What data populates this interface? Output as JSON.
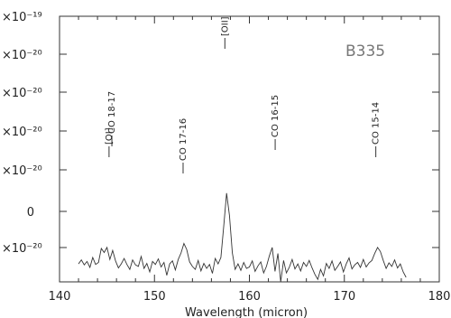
{
  "chart_data": {
    "type": "line",
    "title": "",
    "annotation": "B335",
    "xlabel": "Wavelength (micron)",
    "ylabel": "",
    "xlim": [
      140,
      180
    ],
    "ylim": [
      -3.3e-20,
      5e-19
    ],
    "x_ticks": [
      "140",
      "150",
      "160",
      "170",
      "180"
    ],
    "y_tick_labels": [
      "×10⁻¹⁹",
      "×10⁻²⁰",
      "×10⁻²⁰",
      "×10⁻²⁰",
      "×10⁻²⁰",
      "0",
      "×10⁻²⁰"
    ],
    "line_labels": [
      {
        "text": "CO 18-17",
        "x": 145.8
      },
      {
        "text": "[OI]",
        "x": 145.5
      },
      {
        "text": "CO 17-16",
        "x": 153.3
      },
      {
        "text": "[OII]",
        "x": 157.7
      },
      {
        "text": "CO 16-15",
        "x": 163.0
      },
      {
        "text": "CO 15-14",
        "x": 173.6
      }
    ],
    "series": [
      {
        "x": [
          142.0,
          142.3,
          142.6,
          142.9,
          143.2,
          143.5,
          143.8,
          144.1,
          144.4,
          144.7,
          145.0,
          145.3,
          145.6,
          145.9,
          146.2,
          146.5,
          146.8,
          147.1,
          147.4,
          147.7,
          148.0,
          148.3,
          148.6,
          148.9,
          149.2,
          149.5,
          149.8,
          150.1,
          150.4,
          150.7,
          151.0,
          151.3,
          151.6,
          151.9,
          152.2,
          152.5,
          152.8,
          153.1,
          153.4,
          153.7,
          154.0,
          154.3,
          154.6,
          154.9,
          155.2,
          155.5,
          155.8,
          156.1,
          156.4,
          156.7,
          157.0,
          157.3,
          157.6,
          157.9,
          158.2,
          158.5,
          158.8,
          159.1,
          159.4,
          159.7,
          160.0,
          160.3,
          160.6,
          160.9,
          161.2,
          161.5,
          161.8,
          162.1,
          162.4,
          162.7,
          163.0,
          163.3,
          163.6,
          163.9,
          164.2,
          164.5,
          164.8,
          165.1,
          165.4,
          165.7,
          166.0,
          166.3,
          166.6,
          166.9,
          167.2,
          167.5,
          167.8,
          168.1,
          168.4,
          168.7,
          169.0,
          169.3,
          169.6,
          169.9,
          170.2,
          170.5,
          170.8,
          171.1,
          171.4,
          171.7,
          172.0,
          172.3,
          172.6,
          172.9,
          173.2,
          173.5,
          173.8,
          174.1,
          174.4,
          174.7,
          175.0,
          175.3,
          175.6,
          175.9,
          176.2,
          176.5
        ],
        "y": [
          3e-21,
          1.1e-20,
          1e-21,
          8e-21,
          -4e-21,
          1.6e-20,
          2e-21,
          6e-21,
          3.4e-20,
          2.6e-20,
          3.6e-20,
          1.2e-20,
          3e-20,
          9e-21,
          -5e-21,
          3e-21,
          1.4e-20,
          2e-21,
          -8e-21,
          1.1e-20,
          1e-21,
          -2e-21,
          1.8e-20,
          -6e-21,
          4e-21,
          -1.3e-20,
          8e-21,
          2e-21,
          1.3e-20,
          -3e-21,
          6e-21,
          -2e-20,
          3e-21,
          9e-21,
          -9e-21,
          1.2e-20,
          2.5e-20,
          4.4e-20,
          3.2e-20,
          7e-21,
          -2e-21,
          -8e-21,
          1e-20,
          -1.1e-20,
          4e-21,
          -6e-21,
          2e-21,
          -1.6e-20,
          1.4e-20,
          3e-21,
          1.6e-20,
          8e-20,
          1.45e-19,
          1e-19,
          2.5e-20,
          -8e-21,
          3e-21,
          -1e-20,
          6e-21,
          -6e-21,
          -3e-21,
          9e-21,
          -1.2e-20,
          -1e-21,
          7e-21,
          -1.5e-20,
          -2e-21,
          1.9e-20,
          3.6e-20,
          -1.2e-20,
          2.4e-20,
          -3.3e-20,
          1e-20,
          -1.5e-20,
          -4e-21,
          1.2e-20,
          -7e-21,
          3e-21,
          -1.1e-20,
          6e-21,
          -2e-21,
          1e-20,
          -5e-21,
          -1.8e-20,
          -2.8e-20,
          -8e-21,
          -2.1e-20,
          4e-21,
          -6e-21,
          9e-21,
          -1e-20,
          -2e-21,
          7e-21,
          -1.3e-20,
          3e-21,
          1.5e-20,
          -7e-21,
          1e-21,
          6e-21,
          -4e-21,
          1.2e-20,
          -3e-21,
          5e-21,
          1e-20,
          2.4e-20,
          3.6e-20,
          2.8e-20,
          1e-20,
          -6e-21,
          5e-21,
          -2e-21,
          1.1e-20,
          -5e-21,
          3e-21,
          -1.3e-20,
          -2.4e-20
        ]
      }
    ],
    "grid": false,
    "legend": "none"
  }
}
